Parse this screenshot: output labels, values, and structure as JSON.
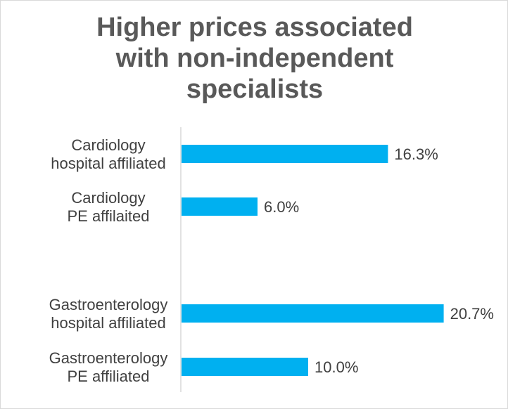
{
  "chart_data": {
    "type": "bar",
    "orientation": "horizontal",
    "title": "Higher prices associated\nwith non-independent\nspecialists",
    "categories": [
      "Cardiology\nhospital affiliated",
      "Cardiology\nPE affilaited",
      "Gastroenterology\nhospital affiliated",
      "Gastroenterology\nPE affiliated"
    ],
    "values": [
      16.3,
      6.0,
      20.7,
      10.0
    ],
    "value_labels": [
      "16.3%",
      "6.0%",
      "20.7%",
      "10.0%"
    ],
    "bar_color": "#00B0F0",
    "grid": false,
    "legend": "none"
  }
}
